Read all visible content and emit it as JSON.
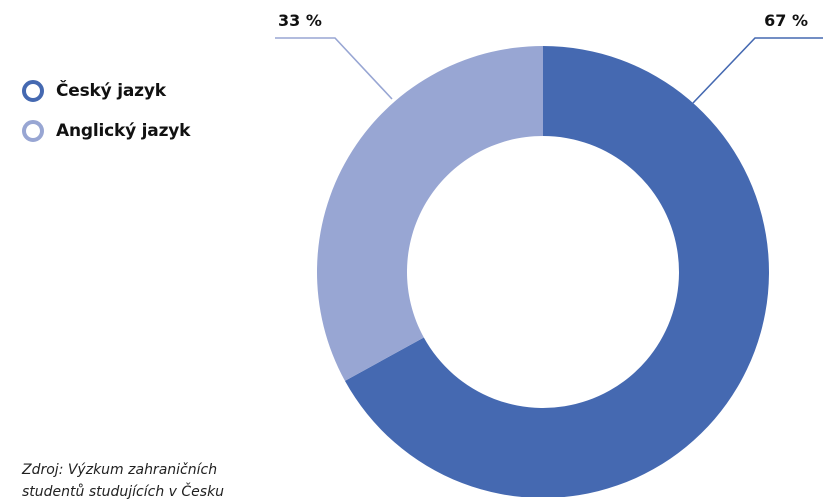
{
  "chart_data": {
    "type": "pie",
    "variant": "donut",
    "slices": [
      {
        "label": "Český jazyk",
        "value": 67,
        "display": "67 %",
        "color": "#4569b1"
      },
      {
        "label": "Anglický jazyk",
        "value": 33,
        "display": "33 %",
        "color": "#98a6d3"
      }
    ],
    "legend_position": "top-left"
  },
  "source": {
    "line1": "Zdroj: Výzkum zahraničních",
    "line2": "studentů studujících v Česku"
  }
}
